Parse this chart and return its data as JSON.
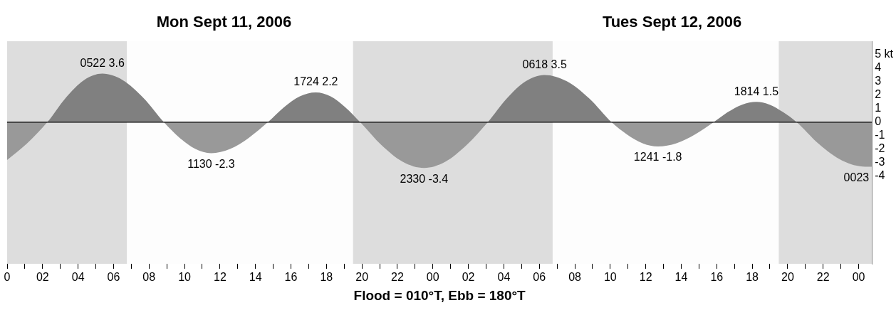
{
  "chart_data": {
    "type": "area",
    "title": "Mon Sept 11, 2006",
    "subtitle": "Tues Sept 12, 2006",
    "xlabel": "Flood = 010°T, Ebb = 180°T",
    "x": [
      "2006-09-11T00:00",
      "2006-09-11T01:06",
      "2006-09-11T02:16",
      "2006-09-11T03:18",
      "2006-09-11T04:20",
      "2006-09-11T05:22",
      "2006-09-11T06:31",
      "2006-09-11T07:41",
      "2006-09-11T08:50",
      "2006-09-11T09:43",
      "2006-09-11T10:37",
      "2006-09-11T11:30",
      "2006-09-11T12:34",
      "2006-09-11T13:38",
      "2006-09-11T14:42",
      "2006-09-11T15:36",
      "2006-09-11T16:30",
      "2006-09-11T17:24",
      "2006-09-11T18:14",
      "2006-09-11T19:04",
      "2006-09-11T19:54",
      "2006-09-11T21:06",
      "2006-09-11T22:18",
      "2006-09-11T23:30",
      "2006-09-12T00:42",
      "2006-09-12T01:54",
      "2006-09-12T03:06",
      "2006-09-12T04:10",
      "2006-09-12T05:14",
      "2006-09-12T06:18",
      "2006-09-12T07:33",
      "2006-09-12T08:49",
      "2006-09-12T10:04",
      "2006-09-12T10:56",
      "2006-09-12T11:49",
      "2006-09-12T12:41",
      "2006-09-12T13:44",
      "2006-09-12T14:47",
      "2006-09-12T15:50",
      "2006-09-12T16:38",
      "2006-09-12T17:26",
      "2006-09-12T18:14",
      "2006-09-12T18:59",
      "2006-09-12T19:44",
      "2006-09-12T20:30",
      "2006-09-12T21:47",
      "2006-09-12T23:05",
      "2006-09-13T00:23",
      "2006-09-13T00:45"
    ],
    "series": [
      {
        "color": "#808080",
        "values": [
          -2.8,
          -1.6,
          0,
          1.8,
          3.12,
          3.6,
          3.12,
          1.8,
          0,
          -1.15,
          -1.99,
          -2.3,
          -1.99,
          -1.15,
          0,
          1.1,
          1.91,
          2.2,
          1.91,
          1.1,
          0,
          -1.7,
          -2.94,
          -3.4,
          -2.94,
          -1.7,
          0,
          1.75,
          3.03,
          3.5,
          3.03,
          1.75,
          0,
          -0.9,
          -1.56,
          -1.8,
          -1.56,
          -0.9,
          0,
          0.75,
          1.3,
          1.5,
          1.3,
          0.75,
          0,
          -1.65,
          -2.86,
          -3.3,
          -3.3
        ]
      }
    ],
    "xlim": [
      "2006-09-11T00:00",
      "2006-09-13T00:45"
    ],
    "xticks": [
      {
        "value": "2006-09-11T00:00",
        "label": "0"
      },
      {
        "value": "2006-09-11T01:00",
        "label": null
      },
      {
        "value": "2006-09-11T02:00",
        "label": "02"
      },
      {
        "value": "2006-09-11T03:00",
        "label": null
      },
      {
        "value": "2006-09-11T04:00",
        "label": "04"
      },
      {
        "value": "2006-09-11T05:00",
        "label": null
      },
      {
        "value": "2006-09-11T06:00",
        "label": "06"
      },
      {
        "value": "2006-09-11T07:00",
        "label": null
      },
      {
        "value": "2006-09-11T08:00",
        "label": "08"
      },
      {
        "value": "2006-09-11T09:00",
        "label": null
      },
      {
        "value": "2006-09-11T10:00",
        "label": "10"
      },
      {
        "value": "2006-09-11T11:00",
        "label": null
      },
      {
        "value": "2006-09-11T12:00",
        "label": "12"
      },
      {
        "value": "2006-09-11T13:00",
        "label": null
      },
      {
        "value": "2006-09-11T14:00",
        "label": "14"
      },
      {
        "value": "2006-09-11T15:00",
        "label": null
      },
      {
        "value": "2006-09-11T16:00",
        "label": "16"
      },
      {
        "value": "2006-09-11T17:00",
        "label": null
      },
      {
        "value": "2006-09-11T18:00",
        "label": "18"
      },
      {
        "value": "2006-09-11T19:00",
        "label": null
      },
      {
        "value": "2006-09-11T20:00",
        "label": "20"
      },
      {
        "value": "2006-09-11T21:00",
        "label": null
      },
      {
        "value": "2006-09-11T22:00",
        "label": "22"
      },
      {
        "value": "2006-09-11T23:00",
        "label": null
      },
      {
        "value": "2006-09-12T00:00",
        "label": "00"
      },
      {
        "value": "2006-09-12T01:00",
        "label": null
      },
      {
        "value": "2006-09-12T02:00",
        "label": "02"
      },
      {
        "value": "2006-09-12T03:00",
        "label": null
      },
      {
        "value": "2006-09-12T04:00",
        "label": "04"
      },
      {
        "value": "2006-09-12T05:00",
        "label": null
      },
      {
        "value": "2006-09-12T06:00",
        "label": "06"
      },
      {
        "value": "2006-09-12T07:00",
        "label": null
      },
      {
        "value": "2006-09-12T08:00",
        "label": "08"
      },
      {
        "value": "2006-09-12T09:00",
        "label": null
      },
      {
        "value": "2006-09-12T10:00",
        "label": "10"
      },
      {
        "value": "2006-09-12T11:00",
        "label": null
      },
      {
        "value": "2006-09-12T12:00",
        "label": "12"
      },
      {
        "value": "2006-09-12T13:00",
        "label": null
      },
      {
        "value": "2006-09-12T14:00",
        "label": "14"
      },
      {
        "value": "2006-09-12T15:00",
        "label": null
      },
      {
        "value": "2006-09-12T16:00",
        "label": "16"
      },
      {
        "value": "2006-09-12T17:00",
        "label": null
      },
      {
        "value": "2006-09-12T18:00",
        "label": "18"
      },
      {
        "value": "2006-09-12T19:00",
        "label": null
      },
      {
        "value": "2006-09-12T20:00",
        "label": "20"
      },
      {
        "value": "2006-09-12T21:00",
        "label": null
      },
      {
        "value": "2006-09-12T22:00",
        "label": "22"
      },
      {
        "value": "2006-09-12T23:00",
        "label": null
      },
      {
        "value": "2006-09-13T00:00",
        "label": "00"
      }
    ],
    "ylim": [
      -10.5,
      6
    ],
    "yticks": [
      {
        "value": 5,
        "label": "5 kt"
      },
      4,
      3,
      2,
      1,
      0,
      -1,
      -2,
      -3,
      -4
    ],
    "bands": [
      {
        "axis": "x",
        "from": "2006-09-11T00:00",
        "to": "2006-09-11T06:45",
        "color": "#dddddd"
      },
      {
        "axis": "x",
        "from": "2006-09-11T19:30",
        "to": "2006-09-12T06:45",
        "color": "#dddddd"
      },
      {
        "axis": "x",
        "from": "2006-09-12T19:30",
        "to": "2006-09-13T00:45",
        "color": "#dddddd"
      }
    ],
    "ref_lines": [
      {
        "axis": "y",
        "value": 0,
        "color": "#000000"
      }
    ],
    "annotations": [
      {
        "text": "0522 3.6",
        "x": "2006-09-11T05:22",
        "y": 3.6
      },
      {
        "text": "1130 -2.3",
        "x": "2006-09-11T11:30",
        "y": -2.3
      },
      {
        "text": "1724 2.2",
        "x": "2006-09-11T17:24",
        "y": 2.2
      },
      {
        "text": "2330 -3.4",
        "x": "2006-09-11T23:30",
        "y": -3.4
      },
      {
        "text": "0618 3.5",
        "x": "2006-09-12T06:18",
        "y": 3.5
      },
      {
        "text": "1241 -1.8",
        "x": "2006-09-12T12:41",
        "y": -1.8
      },
      {
        "text": "1814 1.5",
        "x": "2006-09-12T18:14",
        "y": 1.5
      },
      {
        "text": "0023",
        "x": "2006-09-13T00:23",
        "y": -3.3
      }
    ],
    "grid": false,
    "legend": false
  }
}
